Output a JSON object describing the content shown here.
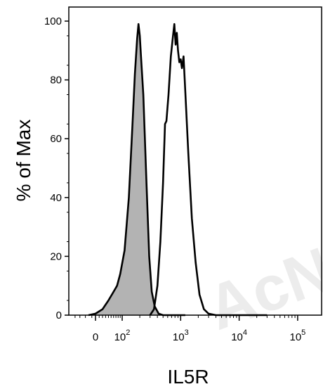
{
  "chart_data": {
    "type": "area",
    "xlabel": "IL5R",
    "ylabel": "% of Max",
    "ylim": [
      0,
      100
    ],
    "y_ticks": [
      "0",
      "20",
      "40",
      "60",
      "80",
      "100"
    ],
    "x_scale": "biexponential",
    "x_ticks": [
      {
        "value": 0,
        "base": "0",
        "exp": ""
      },
      {
        "value": 100,
        "base": "10",
        "exp": "2"
      },
      {
        "value": 1000,
        "base": "10",
        "exp": "3"
      },
      {
        "value": 10000,
        "base": "10",
        "exp": "4"
      },
      {
        "value": 100000,
        "base": "10",
        "exp": "5"
      }
    ],
    "grid": false,
    "legend": "none",
    "series": [
      {
        "style": "filled",
        "fill": "#b3b3b3",
        "stroke": "#000000",
        "points": [
          [
            -20,
            0
          ],
          [
            0,
            0.5
          ],
          [
            20,
            2
          ],
          [
            40,
            5
          ],
          [
            60,
            8
          ],
          [
            75,
            10
          ],
          [
            90,
            14
          ],
          [
            110,
            22
          ],
          [
            130,
            40
          ],
          [
            150,
            65
          ],
          [
            165,
            82
          ],
          [
            180,
            94
          ],
          [
            190,
            99
          ],
          [
            200,
            95
          ],
          [
            210,
            88
          ],
          [
            230,
            75
          ],
          [
            260,
            45
          ],
          [
            290,
            20
          ],
          [
            320,
            8
          ],
          [
            360,
            3
          ],
          [
            420,
            0.5
          ],
          [
            500,
            0
          ],
          [
            800,
            0
          ],
          [
            1200,
            0
          ]
        ]
      },
      {
        "style": "outline",
        "fill": "none",
        "stroke": "#000000",
        "points": [
          [
            300,
            0
          ],
          [
            350,
            2
          ],
          [
            400,
            10
          ],
          [
            450,
            25
          ],
          [
            500,
            45
          ],
          [
            540,
            65
          ],
          [
            570,
            66
          ],
          [
            620,
            75
          ],
          [
            680,
            88
          ],
          [
            740,
            95
          ],
          [
            780,
            99
          ],
          [
            820,
            92
          ],
          [
            860,
            96
          ],
          [
            900,
            90
          ],
          [
            950,
            86
          ],
          [
            1000,
            87
          ],
          [
            1050,
            84
          ],
          [
            1120,
            88
          ],
          [
            1200,
            76
          ],
          [
            1350,
            55
          ],
          [
            1550,
            33
          ],
          [
            1800,
            18
          ],
          [
            2100,
            7
          ],
          [
            2500,
            2
          ],
          [
            3000,
            0.5
          ],
          [
            4000,
            0
          ],
          [
            10000,
            0
          ],
          [
            30000,
            0
          ]
        ]
      }
    ]
  },
  "watermark_text": "AcN"
}
